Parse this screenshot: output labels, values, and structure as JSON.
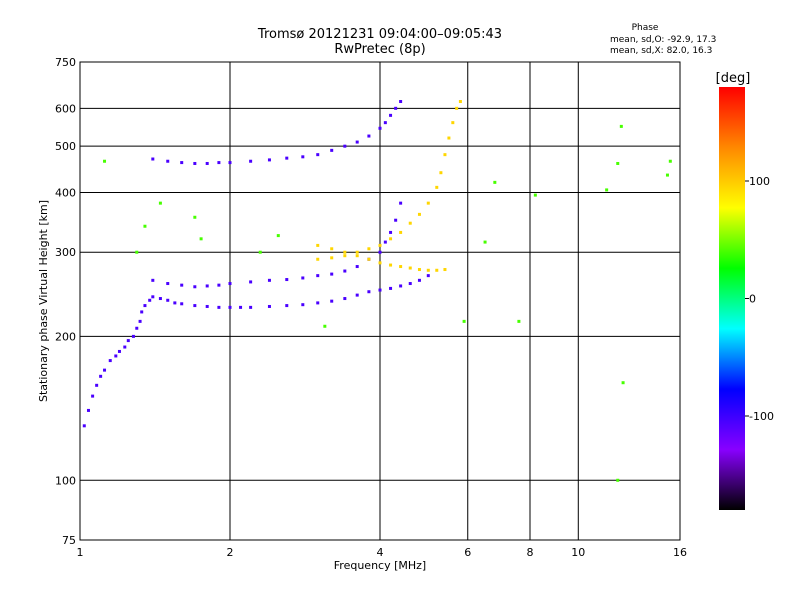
{
  "chart_data": {
    "type": "scatter",
    "title": "Tromsø 20121231 09:04:00–09:05:43",
    "subtitle": "RwPretec (8p)",
    "xlabel": "Frequency [MHz]",
    "ylabel": "Stationary phase Virtual Height [km]",
    "x_scale": "log",
    "y_scale": "log",
    "xlim": [
      1,
      16
    ],
    "ylim": [
      75,
      750
    ],
    "x_ticks": [
      1,
      2,
      4,
      6,
      8,
      10,
      16
    ],
    "y_ticks": [
      75,
      100,
      200,
      300,
      400,
      500,
      600,
      750
    ],
    "grid": true,
    "stats": {
      "heading": "Phase",
      "line_o": "mean, sd,O: -92.9, 17.3",
      "line_x": "mean, sd,X:  82.0, 16.3"
    },
    "colorbar": {
      "label": "[deg]",
      "range": [
        -180,
        180
      ],
      "ticks": [
        100,
        0,
        -100
      ],
      "colors": [
        "#ff0000",
        "#ff8800",
        "#ffff00",
        "#00ff00",
        "#00ffff",
        "#0000ff",
        "#8800ff",
        "#000000"
      ]
    },
    "series": [
      {
        "points": [
          [
            1.02,
            130
          ],
          [
            1.04,
            140
          ],
          [
            1.06,
            150
          ],
          [
            1.08,
            158
          ],
          [
            1.1,
            165
          ],
          [
            1.12,
            170
          ],
          [
            1.15,
            178
          ],
          [
            1.18,
            182
          ],
          [
            1.2,
            186
          ],
          [
            1.23,
            190
          ],
          [
            1.25,
            196
          ],
          [
            1.28,
            200
          ],
          [
            1.3,
            208
          ],
          [
            1.32,
            215
          ],
          [
            1.33,
            225
          ],
          [
            1.35,
            232
          ],
          [
            1.38,
            238
          ],
          [
            1.4,
            242
          ],
          [
            1.45,
            240
          ],
          [
            1.5,
            238
          ],
          [
            1.55,
            235
          ],
          [
            1.6,
            234
          ],
          [
            1.7,
            232
          ],
          [
            1.8,
            231
          ],
          [
            1.9,
            230
          ],
          [
            2.0,
            230
          ],
          [
            2.1,
            230
          ],
          [
            2.2,
            230
          ],
          [
            2.4,
            231
          ],
          [
            2.6,
            232
          ],
          [
            2.8,
            233
          ],
          [
            3.0,
            235
          ],
          [
            3.2,
            237
          ],
          [
            3.4,
            240
          ],
          [
            3.6,
            244
          ],
          [
            3.8,
            248
          ],
          [
            4.0,
            250
          ],
          [
            4.2,
            252
          ],
          [
            4.4,
            255
          ],
          [
            4.6,
            258
          ],
          [
            4.8,
            262
          ],
          [
            5.0,
            268
          ]
        ]
      },
      {
        "points": [
          [
            1.4,
            262
          ],
          [
            1.5,
            258
          ],
          [
            1.6,
            256
          ],
          [
            1.7,
            254
          ],
          [
            1.8,
            255
          ],
          [
            1.9,
            256
          ],
          [
            2.0,
            258
          ],
          [
            2.2,
            260
          ],
          [
            2.4,
            262
          ],
          [
            2.6,
            263
          ],
          [
            2.8,
            265
          ],
          [
            3.0,
            268
          ],
          [
            3.2,
            270
          ],
          [
            3.4,
            274
          ],
          [
            3.6,
            280
          ],
          [
            3.8,
            290
          ],
          [
            4.0,
            300
          ],
          [
            4.1,
            315
          ],
          [
            4.2,
            330
          ],
          [
            4.3,
            350
          ],
          [
            4.4,
            380
          ]
        ]
      },
      {
        "points": [
          [
            1.4,
            470
          ],
          [
            1.5,
            465
          ],
          [
            1.6,
            462
          ],
          [
            1.7,
            460
          ],
          [
            1.8,
            460
          ],
          [
            1.9,
            462
          ],
          [
            2.0,
            462
          ],
          [
            2.2,
            465
          ],
          [
            2.4,
            468
          ],
          [
            2.6,
            472
          ],
          [
            2.8,
            475
          ],
          [
            3.0,
            480
          ],
          [
            3.2,
            490
          ],
          [
            3.4,
            500
          ],
          [
            3.6,
            510
          ],
          [
            3.8,
            525
          ],
          [
            4.0,
            545
          ],
          [
            4.1,
            560
          ],
          [
            4.2,
            580
          ],
          [
            4.3,
            600
          ],
          [
            4.4,
            620
          ]
        ]
      },
      {
        "points": [
          [
            3.0,
            290
          ],
          [
            3.2,
            292
          ],
          [
            3.4,
            295
          ],
          [
            3.6,
            300
          ],
          [
            3.8,
            305
          ],
          [
            4.0,
            310
          ],
          [
            4.2,
            320
          ],
          [
            4.4,
            330
          ],
          [
            4.6,
            345
          ],
          [
            4.8,
            360
          ],
          [
            5.0,
            380
          ],
          [
            5.2,
            410
          ],
          [
            5.3,
            440
          ],
          [
            5.4,
            480
          ],
          [
            5.5,
            520
          ],
          [
            5.6,
            560
          ],
          [
            5.7,
            600
          ],
          [
            5.8,
            620
          ]
        ]
      },
      {
        "points": [
          [
            3.0,
            310
          ],
          [
            3.2,
            305
          ],
          [
            3.4,
            300
          ],
          [
            3.6,
            295
          ],
          [
            3.8,
            290
          ],
          [
            4.0,
            285
          ],
          [
            4.2,
            282
          ],
          [
            4.4,
            280
          ],
          [
            4.6,
            278
          ],
          [
            4.8,
            276
          ],
          [
            5.0,
            275
          ],
          [
            5.2,
            275
          ],
          [
            5.4,
            276
          ]
        ]
      },
      {
        "points": [
          [
            1.12,
            465
          ],
          [
            1.3,
            300
          ],
          [
            1.35,
            340
          ],
          [
            1.45,
            380
          ],
          [
            1.7,
            355
          ],
          [
            1.75,
            320
          ],
          [
            2.3,
            300
          ],
          [
            2.5,
            325
          ],
          [
            3.1,
            210
          ],
          [
            5.9,
            215
          ],
          [
            6.5,
            315
          ],
          [
            6.8,
            420
          ],
          [
            7.6,
            215
          ],
          [
            8.2,
            395
          ],
          [
            11.4,
            405
          ],
          [
            12.0,
            460
          ],
          [
            12.3,
            160
          ],
          [
            12.0,
            100
          ],
          [
            12.2,
            550
          ],
          [
            15.1,
            435
          ],
          [
            15.3,
            465
          ]
        ]
      }
    ]
  }
}
